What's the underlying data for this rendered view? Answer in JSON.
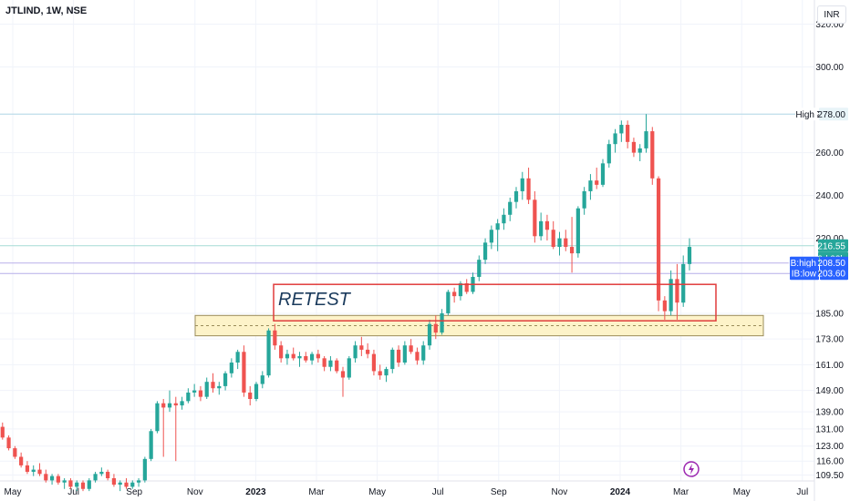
{
  "header": {
    "symbol_line": "JTLIND, 1W, NSE",
    "currency": "INR"
  },
  "colors": {
    "up": "#26a69a",
    "down": "#ef5350",
    "grid": "#f0f3fa",
    "axis_text": "#131722",
    "retest_box": "#e03c3c",
    "zone_fill": "#fdf3c9",
    "zone_border": "#9a8c5a",
    "ib_label_bg": "#2962ff",
    "current_label_bg": "#26a69a",
    "high_line": "#b2d8e6",
    "ib_line": "#b9b0ea"
  },
  "annotations": {
    "retest_text": "RETEST",
    "high_label": "High",
    "high_value": "278.00",
    "current_price": "216.55",
    "countdown": "3d 23h",
    "ib_high_label": "IB:high",
    "ib_high_value": "208.50",
    "ib_low_label": "IB:low",
    "ib_low_value": "203.60"
  },
  "chart_data": {
    "type": "candlestick",
    "title": "JTLIND, 1W, NSE",
    "y_axis_ticks": [
      320.0,
      300.0,
      278.0,
      260.0,
      240.0,
      220.0,
      203.6,
      185.0,
      173.0,
      161.0,
      149.0,
      139.0,
      131.0,
      123.0,
      116.0,
      109.5
    ],
    "x_axis_labels": [
      "May",
      "Jul",
      "Sep",
      "Nov",
      "2023",
      "Mar",
      "May",
      "Jul",
      "Sep",
      "Nov",
      "2024",
      "Mar",
      "May",
      "Jul"
    ],
    "ylim": [
      108,
      330
    ],
    "candles": [
      {
        "o": 139,
        "h": 141,
        "l": 131,
        "c": 132
      },
      {
        "o": 132,
        "h": 134,
        "l": 126,
        "c": 127
      },
      {
        "o": 127,
        "h": 128,
        "l": 121,
        "c": 122
      },
      {
        "o": 122,
        "h": 123,
        "l": 117,
        "c": 118
      },
      {
        "o": 118,
        "h": 120,
        "l": 113,
        "c": 114
      },
      {
        "o": 114,
        "h": 116,
        "l": 110,
        "c": 111
      },
      {
        "o": 111,
        "h": 114,
        "l": 109,
        "c": 112
      },
      {
        "o": 112,
        "h": 115,
        "l": 109,
        "c": 110
      },
      {
        "o": 110,
        "h": 112,
        "l": 106,
        "c": 107
      },
      {
        "o": 107,
        "h": 110,
        "l": 105,
        "c": 109
      },
      {
        "o": 109,
        "h": 110,
        "l": 105,
        "c": 106
      },
      {
        "o": 106,
        "h": 108,
        "l": 103,
        "c": 107
      },
      {
        "o": 107,
        "h": 108,
        "l": 103,
        "c": 104
      },
      {
        "o": 104,
        "h": 107,
        "l": 102,
        "c": 106
      },
      {
        "o": 106,
        "h": 107,
        "l": 102,
        "c": 103
      },
      {
        "o": 103,
        "h": 108,
        "l": 102,
        "c": 107
      },
      {
        "o": 107,
        "h": 111,
        "l": 106,
        "c": 110
      },
      {
        "o": 110,
        "h": 113,
        "l": 109,
        "c": 111
      },
      {
        "o": 111,
        "h": 112,
        "l": 107,
        "c": 108
      },
      {
        "o": 108,
        "h": 110,
        "l": 104,
        "c": 105
      },
      {
        "o": 105,
        "h": 107,
        "l": 102,
        "c": 106
      },
      {
        "o": 106,
        "h": 108,
        "l": 103,
        "c": 104
      },
      {
        "o": 104,
        "h": 107,
        "l": 103,
        "c": 106
      },
      {
        "o": 106,
        "h": 108,
        "l": 104,
        "c": 107
      },
      {
        "o": 107,
        "h": 118,
        "l": 106,
        "c": 117
      },
      {
        "o": 117,
        "h": 131,
        "l": 116,
        "c": 130
      },
      {
        "o": 130,
        "h": 144,
        "l": 129,
        "c": 143
      },
      {
        "o": 143,
        "h": 145,
        "l": 118,
        "c": 141
      },
      {
        "o": 141,
        "h": 149,
        "l": 139,
        "c": 143
      },
      {
        "o": 143,
        "h": 146,
        "l": 116,
        "c": 142
      },
      {
        "o": 142,
        "h": 146,
        "l": 140,
        "c": 144
      },
      {
        "o": 144,
        "h": 150,
        "l": 143,
        "c": 148
      },
      {
        "o": 148,
        "h": 152,
        "l": 146,
        "c": 149
      },
      {
        "o": 149,
        "h": 151,
        "l": 144,
        "c": 146
      },
      {
        "o": 146,
        "h": 155,
        "l": 145,
        "c": 153
      },
      {
        "o": 153,
        "h": 157,
        "l": 148,
        "c": 150
      },
      {
        "o": 150,
        "h": 153,
        "l": 147,
        "c": 151
      },
      {
        "o": 151,
        "h": 158,
        "l": 149,
        "c": 157
      },
      {
        "o": 157,
        "h": 164,
        "l": 155,
        "c": 162
      },
      {
        "o": 162,
        "h": 168,
        "l": 159,
        "c": 167
      },
      {
        "o": 167,
        "h": 170,
        "l": 146,
        "c": 148
      },
      {
        "o": 148,
        "h": 151,
        "l": 142,
        "c": 145
      },
      {
        "o": 145,
        "h": 153,
        "l": 144,
        "c": 152
      },
      {
        "o": 152,
        "h": 158,
        "l": 150,
        "c": 156
      },
      {
        "o": 156,
        "h": 178,
        "l": 155,
        "c": 177
      },
      {
        "o": 177,
        "h": 180,
        "l": 168,
        "c": 170
      },
      {
        "o": 170,
        "h": 172,
        "l": 162,
        "c": 164
      },
      {
        "o": 164,
        "h": 168,
        "l": 161,
        "c": 166
      },
      {
        "o": 166,
        "h": 169,
        "l": 163,
        "c": 164
      },
      {
        "o": 164,
        "h": 167,
        "l": 160,
        "c": 165
      },
      {
        "o": 165,
        "h": 167,
        "l": 162,
        "c": 163
      },
      {
        "o": 163,
        "h": 167,
        "l": 161,
        "c": 166
      },
      {
        "o": 166,
        "h": 168,
        "l": 162,
        "c": 164
      },
      {
        "o": 164,
        "h": 165,
        "l": 158,
        "c": 160
      },
      {
        "o": 160,
        "h": 165,
        "l": 158,
        "c": 163
      },
      {
        "o": 163,
        "h": 164,
        "l": 157,
        "c": 158
      },
      {
        "o": 158,
        "h": 160,
        "l": 146,
        "c": 155
      },
      {
        "o": 155,
        "h": 165,
        "l": 154,
        "c": 164
      },
      {
        "o": 164,
        "h": 172,
        "l": 162,
        "c": 170
      },
      {
        "o": 170,
        "h": 174,
        "l": 165,
        "c": 168
      },
      {
        "o": 168,
        "h": 171,
        "l": 164,
        "c": 166
      },
      {
        "o": 166,
        "h": 168,
        "l": 156,
        "c": 158
      },
      {
        "o": 158,
        "h": 161,
        "l": 154,
        "c": 156
      },
      {
        "o": 156,
        "h": 160,
        "l": 153,
        "c": 159
      },
      {
        "o": 159,
        "h": 169,
        "l": 157,
        "c": 168
      },
      {
        "o": 168,
        "h": 170,
        "l": 160,
        "c": 162
      },
      {
        "o": 162,
        "h": 172,
        "l": 161,
        "c": 170
      },
      {
        "o": 170,
        "h": 173,
        "l": 166,
        "c": 167
      },
      {
        "o": 167,
        "h": 169,
        "l": 161,
        "c": 163
      },
      {
        "o": 163,
        "h": 172,
        "l": 161,
        "c": 170
      },
      {
        "o": 170,
        "h": 182,
        "l": 168,
        "c": 180
      },
      {
        "o": 180,
        "h": 184,
        "l": 173,
        "c": 176
      },
      {
        "o": 176,
        "h": 187,
        "l": 175,
        "c": 185
      },
      {
        "o": 185,
        "h": 196,
        "l": 184,
        "c": 195
      },
      {
        "o": 195,
        "h": 197,
        "l": 190,
        "c": 193
      },
      {
        "o": 193,
        "h": 200,
        "l": 191,
        "c": 199
      },
      {
        "o": 199,
        "h": 201,
        "l": 194,
        "c": 195
      },
      {
        "o": 195,
        "h": 204,
        "l": 194,
        "c": 202
      },
      {
        "o": 202,
        "h": 212,
        "l": 200,
        "c": 210
      },
      {
        "o": 210,
        "h": 220,
        "l": 208,
        "c": 218
      },
      {
        "o": 218,
        "h": 226,
        "l": 215,
        "c": 224
      },
      {
        "o": 224,
        "h": 229,
        "l": 214,
        "c": 227
      },
      {
        "o": 227,
        "h": 234,
        "l": 224,
        "c": 231
      },
      {
        "o": 231,
        "h": 239,
        "l": 228,
        "c": 237
      },
      {
        "o": 237,
        "h": 244,
        "l": 234,
        "c": 242
      },
      {
        "o": 242,
        "h": 251,
        "l": 238,
        "c": 248
      },
      {
        "o": 248,
        "h": 253,
        "l": 236,
        "c": 238
      },
      {
        "o": 238,
        "h": 242,
        "l": 218,
        "c": 221
      },
      {
        "o": 221,
        "h": 232,
        "l": 219,
        "c": 228
      },
      {
        "o": 228,
        "h": 231,
        "l": 219,
        "c": 224
      },
      {
        "o": 224,
        "h": 228,
        "l": 215,
        "c": 216
      },
      {
        "o": 216,
        "h": 223,
        "l": 212,
        "c": 220
      },
      {
        "o": 220,
        "h": 224,
        "l": 214,
        "c": 216
      },
      {
        "o": 216,
        "h": 230,
        "l": 204,
        "c": 213
      },
      {
        "o": 213,
        "h": 235,
        "l": 211,
        "c": 234
      },
      {
        "o": 234,
        "h": 244,
        "l": 231,
        "c": 242
      },
      {
        "o": 242,
        "h": 250,
        "l": 238,
        "c": 247
      },
      {
        "o": 247,
        "h": 253,
        "l": 243,
        "c": 245
      },
      {
        "o": 245,
        "h": 257,
        "l": 244,
        "c": 255
      },
      {
        "o": 255,
        "h": 266,
        "l": 253,
        "c": 264
      },
      {
        "o": 264,
        "h": 271,
        "l": 260,
        "c": 269
      },
      {
        "o": 269,
        "h": 275,
        "l": 265,
        "c": 273
      },
      {
        "o": 273,
        "h": 275,
        "l": 262,
        "c": 265
      },
      {
        "o": 265,
        "h": 267,
        "l": 258,
        "c": 260
      },
      {
        "o": 260,
        "h": 264,
        "l": 256,
        "c": 262
      },
      {
        "o": 262,
        "h": 278,
        "l": 260,
        "c": 270
      },
      {
        "o": 270,
        "h": 272,
        "l": 245,
        "c": 248
      },
      {
        "o": 248,
        "h": 249,
        "l": 186,
        "c": 191
      },
      {
        "o": 191,
        "h": 193,
        "l": 182,
        "c": 186
      },
      {
        "o": 186,
        "h": 205,
        "l": 184,
        "c": 201
      },
      {
        "o": 201,
        "h": 208,
        "l": 182,
        "c": 190
      },
      {
        "o": 190,
        "h": 212,
        "l": 188,
        "c": 208
      },
      {
        "o": 208,
        "h": 220,
        "l": 205,
        "c": 216
      }
    ]
  }
}
